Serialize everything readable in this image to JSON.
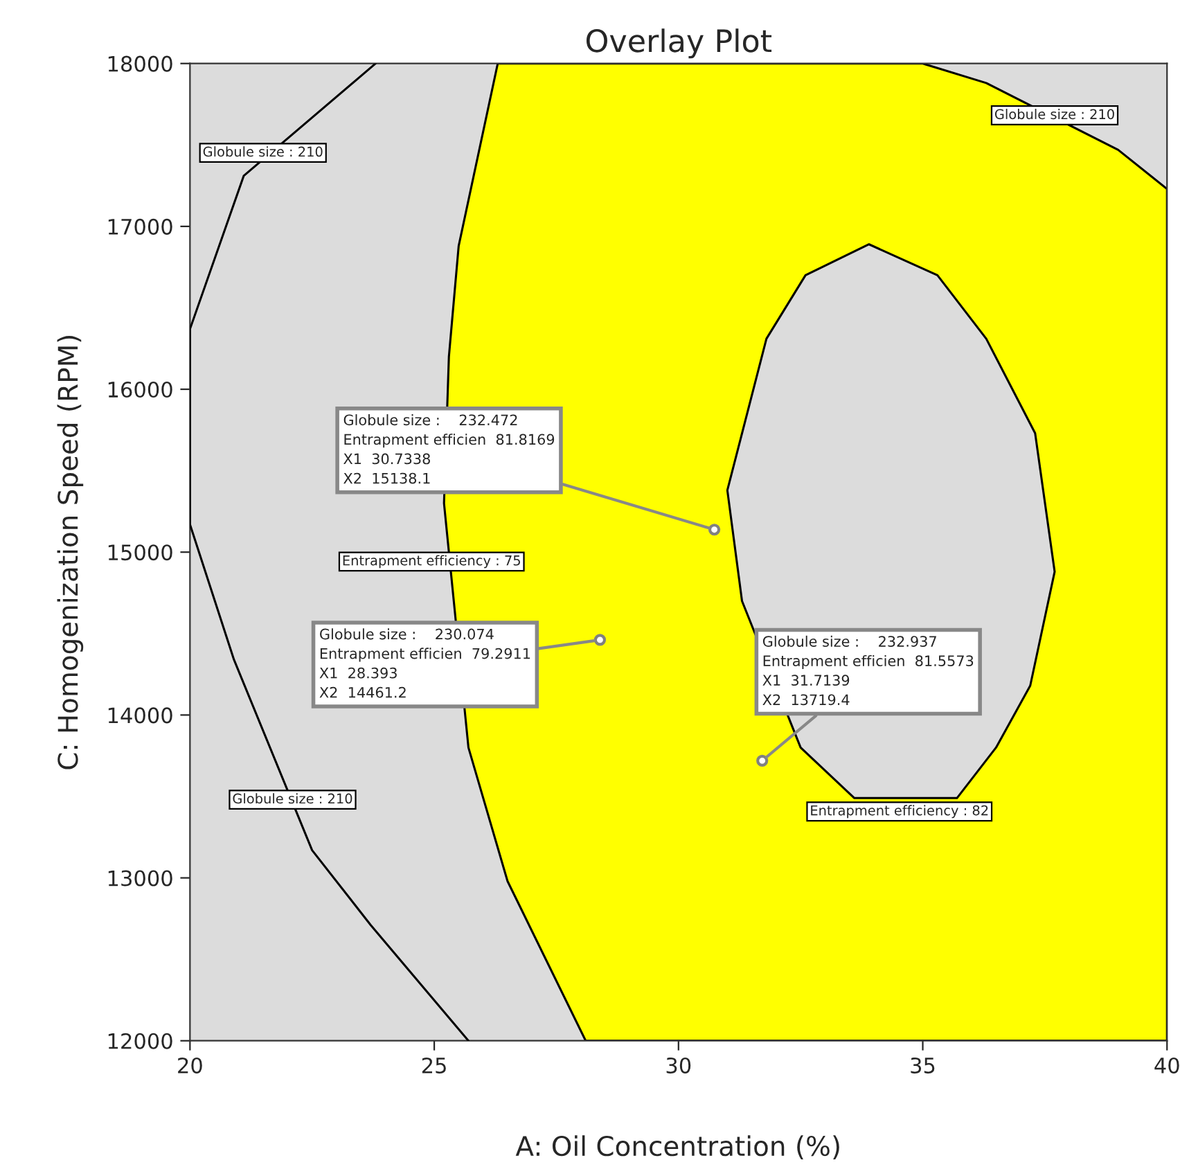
{
  "chart_data": {
    "type": "line",
    "title": "Overlay Plot",
    "xlabel": "A: Oil Concentration (%)",
    "ylabel": "C: Homogenization Speed (RPM)",
    "xlim": [
      20,
      40
    ],
    "xticks": [
      20,
      25,
      30,
      35,
      40
    ],
    "ylim": [
      12000,
      18000
    ],
    "yticks": [
      12000,
      13000,
      14000,
      15000,
      16000,
      17000,
      18000
    ],
    "grid": false,
    "series": [
      {
        "type": "area",
        "color": "#ffff00",
        "x": [
          28.1,
          26.5,
          25.7,
          25.2,
          25.3,
          25.5,
          26.3,
          35.0,
          36.3,
          39.0,
          40,
          40
        ],
        "values": [
          12000,
          12980,
          13800,
          15300,
          16200,
          16880,
          18000,
          18000,
          17880,
          17470,
          17230,
          12000
        ]
      },
      {
        "type": "area",
        "color": "#dcdcdc",
        "x": [
          33.9,
          35.3,
          36.3,
          37.3,
          37.7,
          37.2,
          36.5,
          35.7,
          33.6,
          32.5,
          31.3,
          31.0,
          31.8,
          32.6,
          33.9
        ],
        "values": [
          16890,
          16700,
          16310,
          15730,
          14880,
          14180,
          13800,
          13490,
          13490,
          13800,
          14700,
          15380,
          16310,
          16700,
          16890
        ]
      },
      {
        "color": "#000000",
        "x": [
          23.8,
          21.1,
          20,
          20,
          20.9,
          22.5,
          23.7,
          25.7
        ],
        "values": [
          18000,
          17310,
          16370,
          15170,
          14340,
          13170,
          12710,
          12000
        ]
      },
      {
        "type": "scatter",
        "color": "#808080",
        "marker": "circle",
        "x": [
          30.7338,
          28.393,
          31.7139
        ],
        "values": [
          15138.1,
          14461.2,
          13719.4
        ]
      }
    ],
    "annotations": [
      {
        "text": "Globule size : 210",
        "x": 21.1,
        "y": 17310
      },
      {
        "text": "Globule size : 210",
        "x": 22.1,
        "y": 13480
      },
      {
        "text": "Globule size : 210",
        "x": 37.7,
        "y": 17670
      },
      {
        "text": "Entrapment efficiency : 75",
        "x": 25.3,
        "y": 14930
      },
      {
        "text": "Entrapment efficiency : 82",
        "x": 34.6,
        "y": 13490
      },
      {
        "text": "Globule size :    232.472\nEntrapment efficien  81.8169\nX1  30.7338\nX2  15138.1",
        "x": 30.7338,
        "y": 15138.1
      },
      {
        "text": "Globule size :    230.074\nEntrapment efficien  79.2911\nX1  28.393\nX2  14461.2",
        "x": 28.393,
        "y": 14461.2
      },
      {
        "text": "Globule size :    232.937\nEntrapment efficien  81.5573\nX1  31.7139\nX2  13719.4",
        "x": 31.7139,
        "y": 13719.4
      }
    ]
  }
}
